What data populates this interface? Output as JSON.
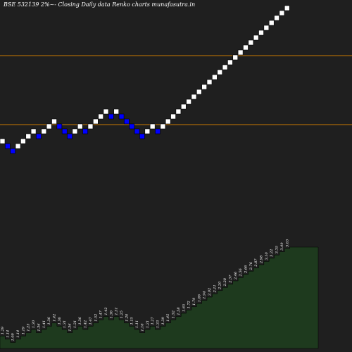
{
  "chart_data": {
    "type": "renko",
    "title": "BSE 532139 2%~- Closing Daily data Renko charts munafasutra.in",
    "colors": {
      "background": "#1f1f1f",
      "up_brick": "#ffffff",
      "down_brick": "#0000ff",
      "level_line": "#c87800",
      "volume_fill": "#1e3a1e"
    },
    "bricks": [
      {
        "dir": "up"
      },
      {
        "dir": "down"
      },
      {
        "dir": "down"
      },
      {
        "dir": "up"
      },
      {
        "dir": "up"
      },
      {
        "dir": "up"
      },
      {
        "dir": "up"
      },
      {
        "dir": "down"
      },
      {
        "dir": "up"
      },
      {
        "dir": "up"
      },
      {
        "dir": "up"
      },
      {
        "dir": "down"
      },
      {
        "dir": "down"
      },
      {
        "dir": "down"
      },
      {
        "dir": "up"
      },
      {
        "dir": "up"
      },
      {
        "dir": "down"
      },
      {
        "dir": "up"
      },
      {
        "dir": "up"
      },
      {
        "dir": "up"
      },
      {
        "dir": "up"
      },
      {
        "dir": "down"
      },
      {
        "dir": "up"
      },
      {
        "dir": "down"
      },
      {
        "dir": "down"
      },
      {
        "dir": "down"
      },
      {
        "dir": "down"
      },
      {
        "dir": "down"
      },
      {
        "dir": "up"
      },
      {
        "dir": "up"
      },
      {
        "dir": "down"
      },
      {
        "dir": "up"
      },
      {
        "dir": "up"
      },
      {
        "dir": "up"
      },
      {
        "dir": "up"
      },
      {
        "dir": "up"
      },
      {
        "dir": "up"
      },
      {
        "dir": "up"
      },
      {
        "dir": "up"
      },
      {
        "dir": "up"
      },
      {
        "dir": "up"
      },
      {
        "dir": "up"
      },
      {
        "dir": "up"
      },
      {
        "dir": "up"
      },
      {
        "dir": "up"
      },
      {
        "dir": "up"
      },
      {
        "dir": "up"
      },
      {
        "dir": "up"
      },
      {
        "dir": "up"
      },
      {
        "dir": "up"
      },
      {
        "dir": "up"
      },
      {
        "dir": "up"
      },
      {
        "dir": "up"
      },
      {
        "dir": "up"
      },
      {
        "dir": "up"
      },
      {
        "dir": "up"
      }
    ],
    "labels": [
      "1.29",
      "1.14",
      "1.09",
      "1.14",
      "1.19",
      "1.25",
      "1.30",
      "1.36",
      "1.41",
      "1.36",
      "1.42",
      "1.36",
      "1.31",
      "1.36",
      "1.31",
      "1.36",
      "1.42",
      "1.47",
      "1.52",
      "1.47",
      "1.42",
      "1.36",
      "1.31",
      "1.25",
      "1.20",
      "1.15",
      "1.11",
      "1.16",
      "1.21",
      "1.27",
      "1.33",
      "1.39",
      "1.45",
      "1.52",
      "1.58",
      "1.65",
      "1.72",
      "1.79",
      "1.86",
      "1.94",
      "2.02",
      "2.11",
      "2.20",
      "2.28",
      "2.37",
      "2.46",
      "2.56",
      "2.66",
      "2.76",
      "2.87",
      "2.98",
      "3.10",
      "3.22",
      "3.35",
      "3.49",
      "3.63"
    ],
    "level_lines": [
      "upper",
      "lower"
    ]
  }
}
